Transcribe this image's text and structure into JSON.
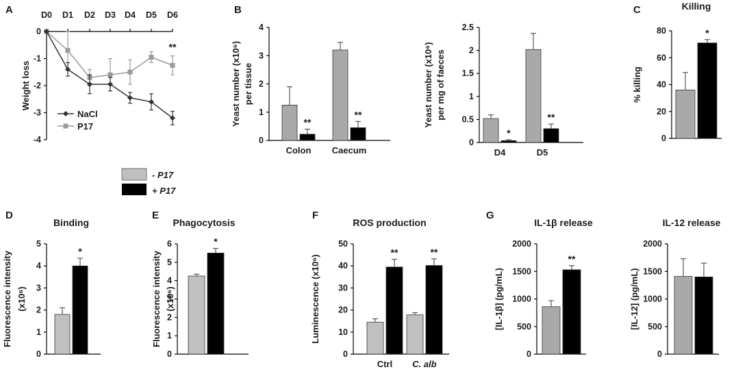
{
  "legend": {
    "minus_label": "- P17",
    "plus_label": "+ P17",
    "minus_color": "#c0c0c0",
    "plus_color": "#000000"
  },
  "chart_data": [
    {
      "id": "A",
      "panel_label": "A",
      "type": "line",
      "title": "",
      "xlabel": "",
      "ylabel": "Weight loss",
      "categories": [
        "D0",
        "D1",
        "D2",
        "D3",
        "D4",
        "D5",
        "D6"
      ],
      "ylim": [
        -4,
        0
      ],
      "yticks": [
        0,
        -1,
        -2,
        -3,
        -4
      ],
      "series": [
        {
          "name": "NaCl",
          "color": "#333333",
          "marker": "diamond",
          "values": [
            0,
            -1.4,
            -1.95,
            -1.95,
            -2.45,
            -2.6,
            -3.2
          ],
          "errors": [
            0,
            0.25,
            0.35,
            0.25,
            0.2,
            0.3,
            0.25
          ]
        },
        {
          "name": "P17",
          "color": "#9a9a9a",
          "marker": "square",
          "values": [
            0,
            -0.7,
            -1.7,
            -1.6,
            -1.5,
            -0.95,
            -1.25
          ],
          "errors": [
            0,
            0.7,
            0.3,
            0.6,
            0.45,
            0.2,
            0.35
          ]
        }
      ],
      "annotations": [
        {
          "index": 6,
          "text": "**"
        }
      ]
    },
    {
      "id": "B1",
      "panel_label": "B",
      "type": "bar",
      "title": "",
      "ylabel_lines": [
        "Yeast number (x10⁶)",
        "per tissue"
      ],
      "categories": [
        "Colon",
        "Caecum"
      ],
      "series": [
        {
          "name": "- P17",
          "color": "#a9a9a9",
          "values": [
            1.25,
            3.2
          ],
          "errors": [
            0.65,
            0.27
          ]
        },
        {
          "name": "+ P17",
          "color": "#000000",
          "values": [
            0.22,
            0.45
          ],
          "errors": [
            0.18,
            0.22
          ]
        }
      ],
      "ylim": [
        0,
        4
      ],
      "yticks": [
        0,
        1,
        2,
        3,
        4
      ],
      "ytick_labels": [
        "0",
        "1",
        "2",
        "3",
        "4"
      ],
      "annotations": [
        {
          "category": 0,
          "series": 1,
          "text": "**"
        },
        {
          "category": 1,
          "series": 1,
          "text": "**"
        }
      ]
    },
    {
      "id": "B2",
      "panel_label": "",
      "type": "bar",
      "title": "",
      "ylabel_lines": [
        "Yeast number (x10⁶)",
        "per mg of  faeces"
      ],
      "categories": [
        "D4",
        "D5"
      ],
      "series": [
        {
          "name": "- P17",
          "color": "#a9a9a9",
          "values": [
            0.52,
            2.02
          ],
          "errors": [
            0.08,
            0.35
          ]
        },
        {
          "name": "+ P17",
          "color": "#000000",
          "values": [
            0.04,
            0.3
          ],
          "errors": [
            0.02,
            0.1
          ]
        }
      ],
      "ylim": [
        0,
        2.5
      ],
      "yticks": [
        0,
        0.5,
        1,
        1.5,
        2,
        2.5
      ],
      "ytick_labels": [
        "0",
        "0.5",
        "1",
        "1.5",
        "2",
        "2.5"
      ],
      "annotations": [
        {
          "category": 0,
          "series": 1,
          "text": "*"
        },
        {
          "category": 1,
          "series": 1,
          "text": "**"
        }
      ]
    },
    {
      "id": "C",
      "panel_label": "C",
      "type": "bar",
      "title": "Killing",
      "ylabel_lines": [
        "% killing"
      ],
      "categories": [
        ""
      ],
      "series": [
        {
          "name": "- P17",
          "color": "#a9a9a9",
          "values": [
            36
          ],
          "errors": [
            13
          ]
        },
        {
          "name": "+ P17",
          "color": "#000000",
          "values": [
            71
          ],
          "errors": [
            2.5
          ]
        }
      ],
      "ylim": [
        0,
        80
      ],
      "yticks": [
        0,
        20,
        40,
        60,
        80
      ],
      "ytick_labels": [
        "0",
        "20",
        "40",
        "60",
        "80"
      ],
      "annotations": [
        {
          "category": 0,
          "series": 1,
          "text": "*"
        }
      ]
    },
    {
      "id": "D",
      "panel_label": "D",
      "type": "bar",
      "title": "Binding",
      "ylabel_lines": [
        "Fluorescence intensity",
        "(x10⁶)"
      ],
      "categories": [
        ""
      ],
      "series": [
        {
          "name": "- P17",
          "color": "#c0c0c0",
          "values": [
            1.8
          ],
          "errors": [
            0.3
          ]
        },
        {
          "name": "+ P17",
          "color": "#000000",
          "values": [
            4.0
          ],
          "errors": [
            0.35
          ]
        }
      ],
      "ylim": [
        0,
        5
      ],
      "yticks": [
        0,
        1,
        2,
        3,
        4,
        5
      ],
      "ytick_labels": [
        "0",
        "1",
        "2",
        "3",
        "4",
        "5"
      ],
      "annotations": [
        {
          "category": 0,
          "series": 1,
          "text": "*"
        }
      ]
    },
    {
      "id": "E",
      "panel_label": "E",
      "type": "bar",
      "title": "Phagocytosis",
      "ylabel_lines": [
        "Fluorescence intensity",
        "(x10⁶)"
      ],
      "categories": [
        ""
      ],
      "series": [
        {
          "name": "- P17",
          "color": "#c0c0c0",
          "values": [
            4.25
          ],
          "errors": [
            0.1
          ]
        },
        {
          "name": "+ P17",
          "color": "#000000",
          "values": [
            5.5
          ],
          "errors": [
            0.25
          ]
        }
      ],
      "ylim": [
        0,
        6
      ],
      "yticks": [
        0,
        1,
        2,
        3,
        4,
        5,
        6
      ],
      "ytick_labels": [
        "0",
        "1",
        "2",
        "3",
        "4",
        "5",
        "6"
      ],
      "annotations": [
        {
          "category": 0,
          "series": 1,
          "text": "*"
        }
      ]
    },
    {
      "id": "F",
      "panel_label": "F",
      "type": "bar",
      "title": "ROS production",
      "ylabel_lines": [
        "Luminescence (x10⁶)"
      ],
      "categories": [
        "Ctrl",
        "C. alb"
      ],
      "italic_categories": [
        false,
        true
      ],
      "series": [
        {
          "name": "- P17",
          "color": "#c0c0c0",
          "values": [
            14.5,
            17.8
          ],
          "errors": [
            1.5,
            1.0
          ]
        },
        {
          "name": "+ P17",
          "color": "#000000",
          "values": [
            39.5,
            40.2
          ],
          "errors": [
            3.5,
            3.0
          ]
        }
      ],
      "ylim": [
        0,
        50
      ],
      "yticks": [
        0,
        10,
        20,
        30,
        40,
        50
      ],
      "ytick_labels": [
        "0",
        "10",
        "20",
        "30",
        "40",
        "50"
      ],
      "annotations": [
        {
          "category": 0,
          "series": 1,
          "text": "**"
        },
        {
          "category": 1,
          "series": 1,
          "text": "**"
        }
      ]
    },
    {
      "id": "G1",
      "panel_label": "G",
      "type": "bar",
      "title": "IL-1β release",
      "ylabel_lines": [
        "[IL-1β] (pg/mL)"
      ],
      "categories": [
        ""
      ],
      "series": [
        {
          "name": "- P17",
          "color": "#a9a9a9",
          "values": [
            860
          ],
          "errors": [
            110
          ]
        },
        {
          "name": "+ P17",
          "color": "#000000",
          "values": [
            1530
          ],
          "errors": [
            75
          ]
        }
      ],
      "ylim": [
        0,
        2000
      ],
      "yticks": [
        0,
        500,
        1000,
        1500,
        2000
      ],
      "ytick_labels": [
        "0",
        "500",
        "1000",
        "1500",
        "2000"
      ],
      "annotations": [
        {
          "category": 0,
          "series": 1,
          "text": "**"
        }
      ]
    },
    {
      "id": "G2",
      "panel_label": "",
      "type": "bar",
      "title": "IL-12 release",
      "ylabel_lines": [
        "[IL-12] (pg/mL)"
      ],
      "categories": [
        ""
      ],
      "series": [
        {
          "name": "- P17",
          "color": "#a9a9a9",
          "values": [
            1410
          ],
          "errors": [
            320
          ]
        },
        {
          "name": "+ P17",
          "color": "#000000",
          "values": [
            1400
          ],
          "errors": [
            250
          ]
        }
      ],
      "ylim": [
        0,
        2000
      ],
      "yticks": [
        0,
        500,
        1000,
        1500,
        2000
      ],
      "ytick_labels": [
        "0",
        "500",
        "1000",
        "1500",
        "2000"
      ],
      "annotations": []
    }
  ]
}
